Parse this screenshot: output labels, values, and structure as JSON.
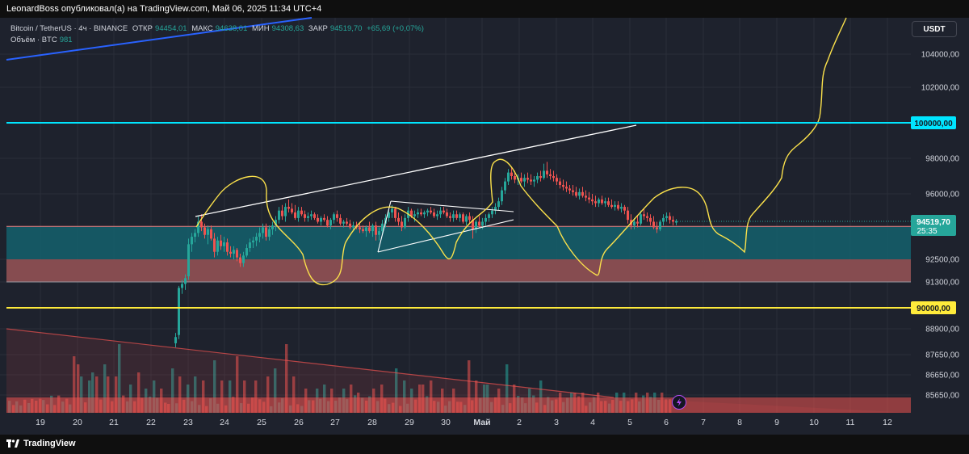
{
  "header": {
    "text": "LeonardBoss опубликовал(а) на TradingView.com, Май 06, 2025 11:34 UTC+4"
  },
  "legend": {
    "symbol": "Bitcoin / TetherUS · 4ч · BINANCE",
    "open_label": "ОТКР",
    "open_value": "94454,01",
    "high_label": "МАКС",
    "high_value": "94638,01",
    "low_label": "МИН",
    "low_value": "94308,63",
    "close_label": "ЗАКР",
    "close_value": "94519,70",
    "change": "+65,69 (+0,07%)",
    "volume_label": "Объём · BTC",
    "volume_value": "981"
  },
  "currency_button": "USDT",
  "footer": {
    "brand": "TradingView"
  },
  "colors": {
    "background": "#1e222d",
    "up": "#26a69a",
    "down": "#ef5350",
    "cyan_line": "#00e5ff",
    "yellow_line": "#ffeb3b",
    "zone_teal": "#155b66",
    "zone_red": "#8c4f52"
  },
  "chart_data": {
    "type": "candlestick",
    "title": "Bitcoin / TetherUS · 4ч · BINANCE",
    "y_ticks": [
      "104000,00",
      "102000,00",
      "98000,00",
      "96000,00",
      "92500,00",
      "91300,00",
      "88900,00",
      "87650,00",
      "86650,00",
      "85650,00"
    ],
    "x_ticks": [
      "19",
      "20",
      "21",
      "22",
      "23",
      "24",
      "25",
      "26",
      "27",
      "28",
      "29",
      "30",
      "Май",
      "2",
      "3",
      "4",
      "5",
      "6",
      "7",
      "8",
      "9",
      "10",
      "11",
      "12"
    ],
    "price_labels": [
      {
        "value": "100000,00",
        "color": "#00e5ff"
      },
      {
        "value": "90000,00",
        "color": "#ffeb3b"
      },
      {
        "value": "94519,70",
        "sub": "25:35",
        "color": "#26a69a"
      }
    ],
    "horizontal_levels": [
      100000,
      90000
    ],
    "zones": [
      {
        "name": "support-zone",
        "from": 92500,
        "to": 94250,
        "color": "#155b66"
      },
      {
        "name": "demand-zone",
        "from": 91300,
        "to": 92500,
        "color": "#8c4f52"
      }
    ],
    "last_price": 94519.7
  }
}
